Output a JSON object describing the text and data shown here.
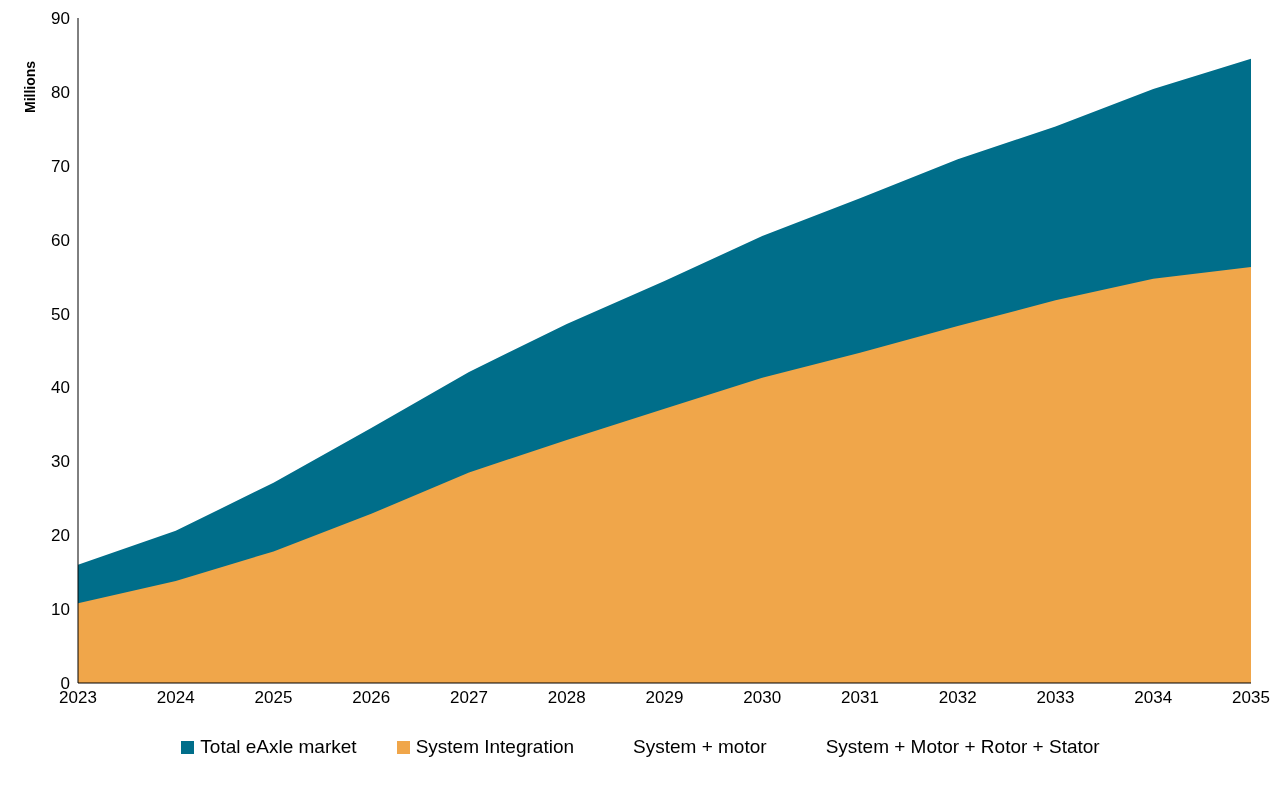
{
  "chart_data": {
    "type": "area",
    "ylabel": "Millions",
    "categories": [
      "2023",
      "2024",
      "2025",
      "2026",
      "2027",
      "2028",
      "2029",
      "2030",
      "2031",
      "2032",
      "2033",
      "2034",
      "2035"
    ],
    "series": [
      {
        "name": "Total eAxle market",
        "color": "#006e8a",
        "values": [
          16,
          20.6,
          27.1,
          34.5,
          42.1,
          48.6,
          54.4,
          60.5,
          65.6,
          70.9,
          75.3,
          80.4,
          84.5
        ]
      },
      {
        "name": "System Integration",
        "color": "#f0a64a",
        "values": [
          10.8,
          13.8,
          17.8,
          22.9,
          28.5,
          32.9,
          37.1,
          41.3,
          44.7,
          48.3,
          51.8,
          54.7,
          56.3
        ]
      },
      {
        "name": "System + motor",
        "values": [
          null,
          null,
          null,
          null,
          null,
          null,
          null,
          null,
          null,
          null,
          null,
          null,
          null
        ]
      },
      {
        "name": "System + Motor + Rotor + Stator",
        "values": [
          null,
          null,
          null,
          null,
          null,
          null,
          null,
          null,
          null,
          null,
          null,
          null,
          null
        ]
      }
    ],
    "ylim": [
      0,
      90
    ],
    "yticks": [
      0,
      10,
      20,
      30,
      40,
      50,
      60,
      70,
      80,
      90
    ],
    "grid": false,
    "legend": "bottom"
  }
}
